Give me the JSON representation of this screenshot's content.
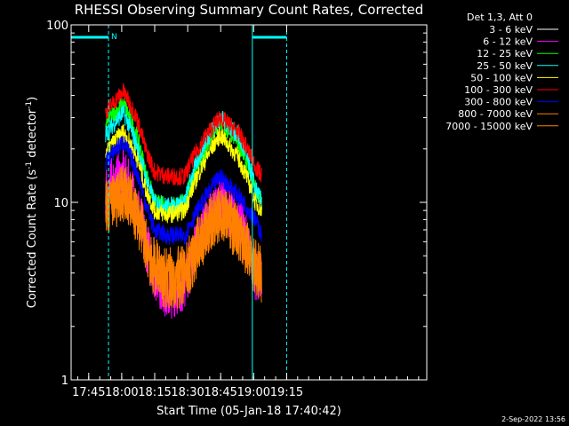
{
  "chart_data": {
    "type": "line",
    "title": "RHESSI Observing Summary Count Rates, Corrected",
    "xlabel": "Start Time (05-Jan-18 17:40:42)",
    "ylabel": "Corrected Count Rate (s",
    "ylabel_sup": "-1",
    "ylabel_tail": " detector",
    "ylabel_tail_sup": "-1",
    "ylabel_end": ")",
    "yscale": "log",
    "ylim": [
      1,
      100
    ],
    "xlim_min": [
      -3.7,
      158
    ],
    "y_ticks": [
      {
        "v": 1,
        "label": "1"
      },
      {
        "v": 10,
        "label": "10"
      },
      {
        "v": 100,
        "label": "100"
      }
    ],
    "x_ticks": [
      {
        "v": 4.3,
        "label": "17:45"
      },
      {
        "v": 19.3,
        "label": "18:00"
      },
      {
        "v": 34.3,
        "label": "18:15"
      },
      {
        "v": 49.3,
        "label": "18:30"
      },
      {
        "v": 64.3,
        "label": "18:45"
      },
      {
        "v": 79.3,
        "label": "19:00"
      },
      {
        "v": 94.3,
        "label": "19:15"
      }
    ],
    "legend_header": "Det 1,3, Att 0",
    "legend_position": "right",
    "series": [
      {
        "name": "3 - 6 keV",
        "color": "#000000",
        "t": [
          12,
          20,
          26,
          30,
          34,
          40,
          48,
          56,
          64,
          72,
          80,
          83
        ],
        "v": [
          20,
          30,
          23,
          17,
          15,
          15,
          15,
          18,
          19,
          19,
          16,
          16
        ]
      },
      {
        "name": "6 - 12 keV",
        "color": "#ff00ff",
        "t": [
          12,
          20,
          26,
          30,
          34,
          40,
          48,
          56,
          64,
          72,
          80,
          83
        ],
        "v": [
          12,
          14,
          10,
          6,
          4,
          3,
          3.5,
          7,
          10,
          8,
          4,
          3.5
        ]
      },
      {
        "name": "12 - 25 keV",
        "color": "#00ff00",
        "t": [
          12,
          20,
          26,
          30,
          34,
          40,
          48,
          56,
          64,
          72,
          80,
          83
        ],
        "v": [
          28,
          36,
          24,
          15,
          10,
          9.5,
          10,
          18,
          28,
          22,
          12,
          10
        ]
      },
      {
        "name": "25 - 50 keV",
        "color": "#00ffff",
        "t": [
          12,
          20,
          26,
          30,
          34,
          40,
          48,
          56,
          64,
          72,
          80,
          83
        ],
        "v": [
          24,
          32,
          21,
          14,
          10,
          9.5,
          10,
          20,
          30,
          24,
          12,
          10
        ]
      },
      {
        "name": "50 - 100 keV",
        "color": "#ffff00",
        "t": [
          12,
          20,
          26,
          30,
          34,
          40,
          48,
          56,
          64,
          72,
          80,
          83
        ],
        "v": [
          19,
          25,
          18,
          12,
          9,
          8.5,
          9,
          16,
          24,
          18,
          10,
          9
        ]
      },
      {
        "name": "100 - 300 keV",
        "color": "#ff0000",
        "t": [
          12,
          20,
          26,
          30,
          34,
          40,
          48,
          56,
          64,
          72,
          80,
          83
        ],
        "v": [
          32,
          42,
          30,
          20,
          15,
          14,
          14,
          22,
          30,
          25,
          16,
          14
        ]
      },
      {
        "name": "300 - 800 keV",
        "color": "#0000ff",
        "t": [
          12,
          20,
          26,
          30,
          34,
          40,
          48,
          56,
          64,
          72,
          80,
          83
        ],
        "v": [
          17,
          22,
          15,
          10,
          7,
          6.5,
          6.5,
          10,
          14,
          11,
          8,
          6.5
        ]
      },
      {
        "name": "800 - 7000 keV",
        "color": "#ff8000",
        "t": [
          12,
          20,
          26,
          30,
          34,
          40,
          48,
          56,
          64,
          72,
          80,
          83
        ],
        "v": [
          9.5,
          12,
          9,
          6,
          4.5,
          4,
          4,
          6.5,
          9,
          7,
          4.5,
          4
        ]
      },
      {
        "name": "7000 - 15000 keV",
        "color": "#ff8000",
        "t": [
          12,
          20,
          26,
          30,
          34,
          40,
          48,
          56,
          64,
          72,
          80,
          83
        ],
        "v": [
          9,
          11,
          8.5,
          5.5,
          4,
          3.5,
          3.5,
          6,
          8.5,
          6.5,
          4,
          3.5
        ]
      }
    ],
    "night_bars": [
      {
        "t0": -3.7,
        "t1": 13.3,
        "label": "N"
      },
      {
        "t0": 78.7,
        "t1": 94.3,
        "label": ""
      }
    ],
    "dashed_lines": [
      13.3,
      94.3
    ],
    "solid_lines": [
      -3.7,
      78.7
    ],
    "footer_date": "2-Sep-2022 13:56"
  }
}
